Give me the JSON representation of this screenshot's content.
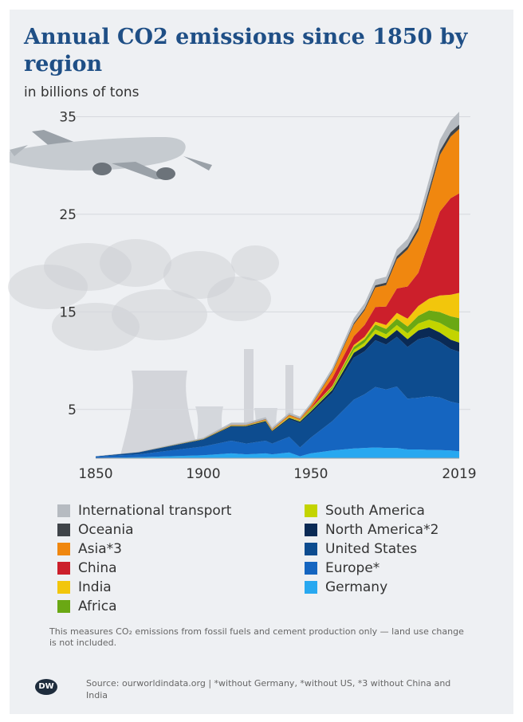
{
  "title": "Annual CO2 emissions since 1850 by region",
  "subtitle": "in billions of tons",
  "footnote": "This measures CO₂ emissions from fossil fuels and cement production only — land use change is not included.",
  "source": "Source: ourworldindata.org | *without Germany, *without US, *3 without China and India",
  "logo_text": "DW",
  "colors": {
    "background": "#eef0f3",
    "title": "#1f4f86",
    "illustration": "#c9ccd1"
  },
  "chart_data": {
    "type": "area",
    "stacked": true,
    "ylim": [
      0,
      37
    ],
    "y_ticks": [
      "5",
      "15",
      "25",
      "35"
    ],
    "x_ticks": [
      "1850",
      "1900",
      "1950",
      "2019"
    ],
    "x": [
      1850,
      1870,
      1900,
      1913,
      1920,
      1929,
      1932,
      1940,
      1945,
      1950,
      1960,
      1970,
      1975,
      1980,
      1985,
      1990,
      1995,
      2000,
      2005,
      2010,
      2015,
      2019
    ],
    "series": [
      {
        "name": "Germany",
        "color": "#28a8f0",
        "values": [
          0.03,
          0.1,
          0.3,
          0.5,
          0.4,
          0.5,
          0.4,
          0.6,
          0.2,
          0.5,
          0.8,
          1.0,
          1.05,
          1.1,
          1.05,
          1.05,
          0.9,
          0.9,
          0.85,
          0.83,
          0.8,
          0.7
        ]
      },
      {
        "name": "Europe*",
        "color": "#1565c0",
        "values": [
          0.15,
          0.3,
          0.9,
          1.3,
          1.1,
          1.3,
          1.1,
          1.6,
          0.9,
          1.6,
          3.0,
          5.0,
          5.5,
          6.2,
          6.0,
          6.3,
          5.2,
          5.3,
          5.5,
          5.4,
          5.0,
          4.9
        ]
      },
      {
        "name": "United States",
        "color": "#0d4c8f",
        "values": [
          0.02,
          0.2,
          0.7,
          1.4,
          1.7,
          1.9,
          1.2,
          1.8,
          2.5,
          2.5,
          2.9,
          4.3,
          4.4,
          4.8,
          4.6,
          5.1,
          5.3,
          6.0,
          6.1,
          5.7,
          5.4,
          5.3
        ]
      },
      {
        "name": "North America*2",
        "color": "#0a2a55",
        "values": [
          0,
          0.01,
          0.04,
          0.1,
          0.1,
          0.1,
          0.1,
          0.13,
          0.15,
          0.2,
          0.3,
          0.5,
          0.55,
          0.65,
          0.6,
          0.7,
          0.8,
          0.9,
          0.95,
          0.95,
          0.95,
          0.95
        ]
      },
      {
        "name": "South America",
        "color": "#c3d400",
        "values": [
          0,
          0,
          0.01,
          0.02,
          0.02,
          0.03,
          0.02,
          0.04,
          0.04,
          0.1,
          0.15,
          0.3,
          0.35,
          0.45,
          0.45,
          0.5,
          0.6,
          0.7,
          0.8,
          1.0,
          1.1,
          1.1
        ]
      },
      {
        "name": "Africa",
        "color": "#6aa814",
        "values": [
          0,
          0,
          0.01,
          0.02,
          0.02,
          0.03,
          0.02,
          0.04,
          0.05,
          0.1,
          0.15,
          0.3,
          0.35,
          0.5,
          0.55,
          0.65,
          0.7,
          0.8,
          0.95,
          1.1,
          1.3,
          1.4
        ]
      },
      {
        "name": "India",
        "color": "#f2c60c",
        "values": [
          0,
          0,
          0.01,
          0.02,
          0.02,
          0.03,
          0.03,
          0.05,
          0.06,
          0.07,
          0.12,
          0.2,
          0.25,
          0.3,
          0.4,
          0.6,
          0.8,
          1.0,
          1.2,
          1.7,
          2.2,
          2.6
        ]
      },
      {
        "name": "China",
        "color": "#cc1f2b",
        "values": [
          0,
          0,
          0,
          0.01,
          0.01,
          0.02,
          0.02,
          0.03,
          0.03,
          0.08,
          0.8,
          0.9,
          1.2,
          1.5,
          1.9,
          2.5,
          3.3,
          3.4,
          5.8,
          8.6,
          9.9,
          10.2
        ]
      },
      {
        "name": "Asia*3",
        "color": "#f0870f",
        "values": [
          0,
          0,
          0.02,
          0.05,
          0.05,
          0.07,
          0.06,
          0.15,
          0.1,
          0.2,
          0.6,
          1.2,
          1.5,
          2.0,
          2.2,
          3.0,
          3.8,
          4.3,
          5.0,
          5.8,
          6.3,
          6.6
        ]
      },
      {
        "name": "Oceania",
        "color": "#3f4449",
        "values": [
          0,
          0,
          0.01,
          0.02,
          0.02,
          0.03,
          0.03,
          0.04,
          0.04,
          0.05,
          0.1,
          0.15,
          0.18,
          0.22,
          0.25,
          0.3,
          0.33,
          0.38,
          0.42,
          0.44,
          0.45,
          0.46
        ]
      },
      {
        "name": "International transport",
        "color": "#b6bbc1",
        "values": [
          0.02,
          0.05,
          0.1,
          0.2,
          0.2,
          0.2,
          0.2,
          0.2,
          0.2,
          0.25,
          0.35,
          0.5,
          0.55,
          0.6,
          0.6,
          0.7,
          0.75,
          0.85,
          1.0,
          1.1,
          1.2,
          1.3
        ]
      }
    ],
    "legend_layout": "two-columns-below"
  },
  "legend": {
    "left": [
      {
        "label": "International transport",
        "color": "#b6bbc1"
      },
      {
        "label": "Oceania",
        "color": "#3f4449"
      },
      {
        "label": "Asia*3",
        "color": "#f0870f"
      },
      {
        "label": "China",
        "color": "#cc1f2b"
      },
      {
        "label": "India",
        "color": "#f2c60c"
      },
      {
        "label": "Africa",
        "color": "#6aa814"
      }
    ],
    "right": [
      {
        "label": "South America",
        "color": "#c3d400"
      },
      {
        "label": "North America*2",
        "color": "#0a2a55"
      },
      {
        "label": "United States",
        "color": "#0d4c8f"
      },
      {
        "label": "Europe*",
        "color": "#1565c0"
      },
      {
        "label": "Germany",
        "color": "#28a8f0"
      }
    ]
  }
}
